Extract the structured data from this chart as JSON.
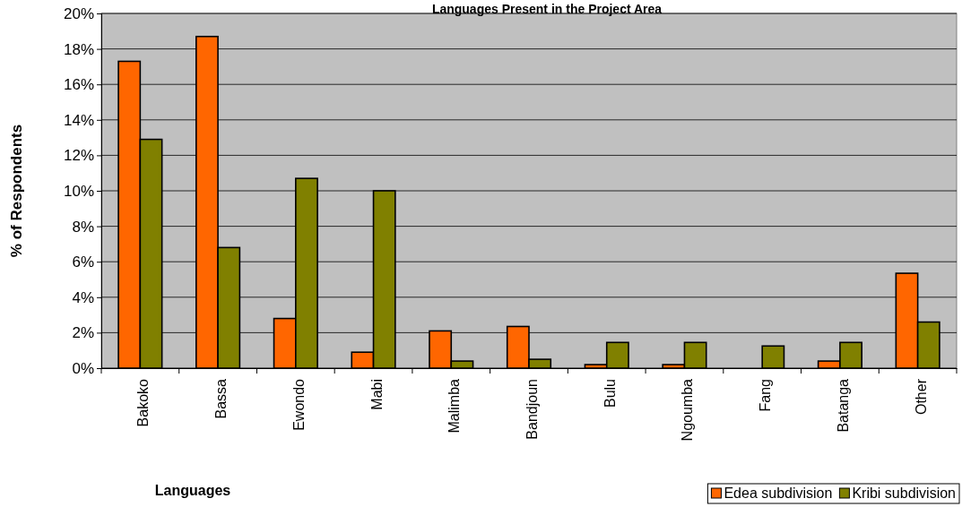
{
  "chart_data": {
    "type": "bar",
    "title": "Languages Present in the Project Area",
    "xlabel": "Languages",
    "ylabel": "% of Respondents",
    "categories": [
      "Bakoko",
      "Bassa",
      "Ewondo",
      "Mabi",
      "Malimba",
      "Bandjoun",
      "Bulu",
      "Ngoumba",
      "Fang",
      "Batanga",
      "Other"
    ],
    "series": [
      {
        "name": "Edea subdivision",
        "color": "#ff6600",
        "values": [
          17.3,
          18.7,
          2.8,
          0.9,
          2.1,
          2.35,
          0.2,
          0.2,
          0,
          0.4,
          5.35
        ]
      },
      {
        "name": "Kribi subdivision",
        "color": "#808000",
        "values": [
          12.9,
          6.8,
          10.7,
          10.0,
          0.4,
          0.5,
          1.45,
          1.45,
          1.25,
          1.45,
          2.6
        ]
      }
    ],
    "ylim": [
      0,
      20
    ],
    "yticks": [
      {
        "value": 0,
        "label": "0%"
      },
      {
        "value": 2,
        "label": "2%"
      },
      {
        "value": 4,
        "label": "4%"
      },
      {
        "value": 6,
        "label": "6%"
      },
      {
        "value": 8,
        "label": "8%"
      },
      {
        "value": 10,
        "label": "10%"
      },
      {
        "value": 12,
        "label": "12%"
      },
      {
        "value": 14,
        "label": "14%"
      },
      {
        "value": 16,
        "label": "16%"
      },
      {
        "value": 18,
        "label": "18%"
      },
      {
        "value": 20,
        "label": "20%"
      }
    ],
    "grid": "y",
    "legend": "bottom right"
  }
}
